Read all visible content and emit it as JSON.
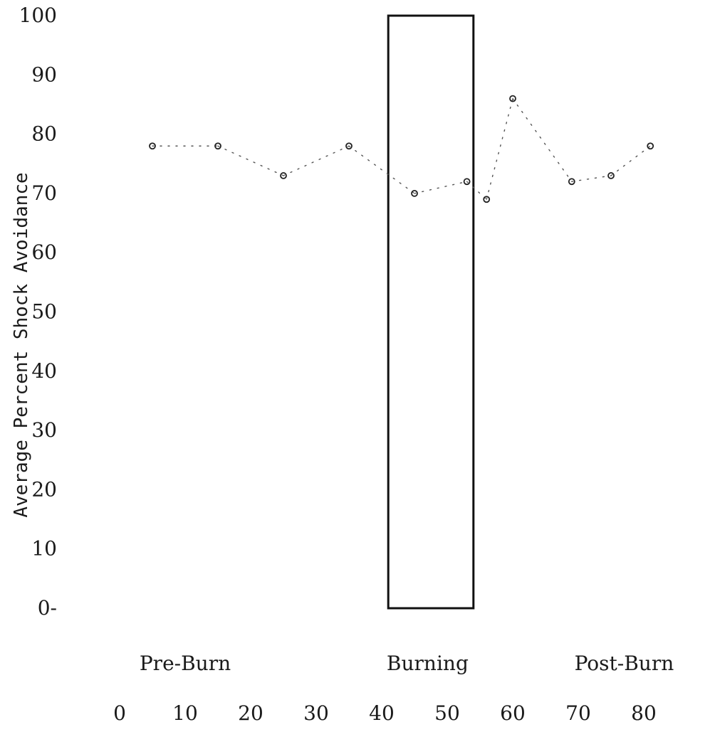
{
  "chart_data": {
    "type": "line",
    "title": "",
    "ylabel": "Average Percent Shock Avoidance",
    "xlabel": "",
    "ylim": [
      0,
      100
    ],
    "xlim": [
      0,
      85
    ],
    "y_ticks": [
      {
        "v": 0,
        "label": "0-"
      },
      {
        "v": 10,
        "label": "10"
      },
      {
        "v": 20,
        "label": "20"
      },
      {
        "v": 30,
        "label": "30"
      },
      {
        "v": 40,
        "label": "40"
      },
      {
        "v": 50,
        "label": "50"
      },
      {
        "v": 60,
        "label": "60"
      },
      {
        "v": 70,
        "label": "70"
      },
      {
        "v": 80,
        "label": "80"
      },
      {
        "v": 90,
        "label": "90"
      },
      {
        "v": 100,
        "label": "100"
      }
    ],
    "x_ticks": [
      0,
      10,
      20,
      30,
      40,
      50,
      60,
      70,
      80
    ],
    "phases": [
      {
        "label": "Pre-Burn",
        "x": 10
      },
      {
        "label": "Burning",
        "x": 47
      },
      {
        "label": "Post-Burn",
        "x": 77
      }
    ],
    "burning_box": {
      "x_start": 41,
      "x_end": 54,
      "y_bottom": 0,
      "y_top": 100
    },
    "grid": false,
    "legend": "none",
    "series": [
      {
        "points": [
          {
            "x": 5,
            "y": 78
          },
          {
            "x": 15,
            "y": 78
          },
          {
            "x": 25,
            "y": 73
          },
          {
            "x": 35,
            "y": 78
          },
          {
            "x": 45,
            "y": 70
          },
          {
            "x": 53,
            "y": 72
          },
          {
            "x": 56,
            "y": 69
          },
          {
            "x": 60,
            "y": 86
          },
          {
            "x": 69,
            "y": 72
          },
          {
            "x": 75,
            "y": 73
          },
          {
            "x": 81,
            "y": 78
          }
        ]
      }
    ]
  }
}
